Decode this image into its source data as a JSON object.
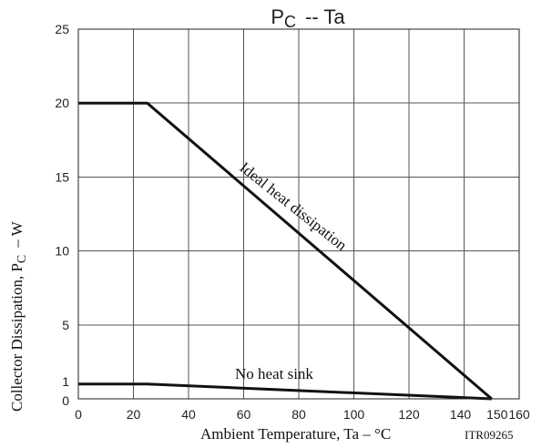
{
  "chart_data": {
    "type": "line",
    "title_main": "P",
    "title_sub": "C",
    "title_rest": "-- Ta",
    "ylabel_main": "Collector Dissipation, P",
    "ylabel_sub": "C",
    "ylabel_rest": "– W",
    "xlabel": "Ambient Temperature, Ta – °C",
    "code": "ITR09265",
    "xlim": [
      0,
      160
    ],
    "ylim": [
      0,
      25
    ],
    "xticks": [
      0,
      20,
      40,
      60,
      80,
      100,
      120,
      140,
      150,
      160
    ],
    "xtick_labels": [
      "0",
      "20",
      "40",
      "60",
      "80",
      "100",
      "120",
      "140",
      "150",
      "160"
    ],
    "yticks": [
      0,
      1,
      5,
      10,
      15,
      20,
      25
    ],
    "ytick_labels": [
      "0",
      "1",
      "5",
      "10",
      "15",
      "20",
      "25"
    ],
    "grid": true,
    "series": [
      {
        "label": "Ideal heat dissipation",
        "x": [
          0,
          25,
          150
        ],
        "y": [
          20,
          20,
          0
        ]
      },
      {
        "label": "No heat sink",
        "x": [
          0,
          25,
          150
        ],
        "y": [
          1,
          1,
          0
        ]
      }
    ]
  }
}
